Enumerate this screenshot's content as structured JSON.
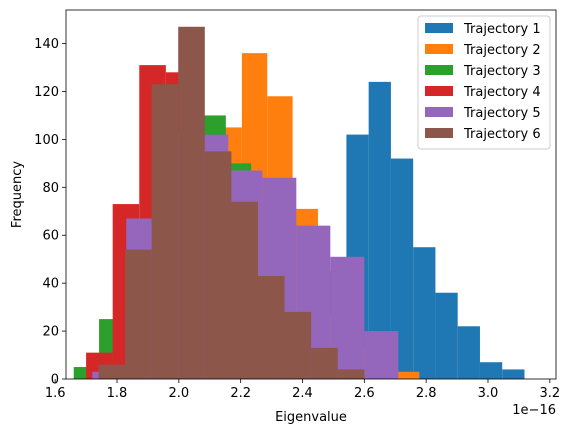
{
  "chart_data": {
    "type": "bar",
    "xlabel": "Eigenvalue",
    "ylabel": "Frequency",
    "x_offset_label": "1e−16",
    "xlim": [
      1.635,
      3.22
    ],
    "ylim": [
      0,
      154
    ],
    "xticks": [
      "1.6",
      "1.8",
      "2.0",
      "2.2",
      "2.4",
      "2.6",
      "2.8",
      "3.0",
      "3.2"
    ],
    "xtick_values": [
      1.6,
      1.8,
      2.0,
      2.2,
      2.4,
      2.6,
      2.8,
      3.0,
      3.2
    ],
    "yticks": [
      "0",
      "20",
      "40",
      "60",
      "80",
      "100",
      "120",
      "140"
    ],
    "ytick_values": [
      0,
      20,
      40,
      60,
      80,
      100,
      120,
      140
    ],
    "legend_position": "top-right",
    "series": [
      {
        "name": "Trajectory 1",
        "color": "#1f77b4",
        "bin_edges": [
          2.47,
          2.542,
          2.614,
          2.686,
          2.758,
          2.83,
          2.902,
          2.974,
          3.046,
          3.118,
          3.19
        ],
        "counts": [
          45,
          102,
          124,
          92,
          55,
          36,
          22,
          7,
          4,
          0
        ]
      },
      {
        "name": "Trajectory 2",
        "color": "#ff7f0e",
        "bin_edges": [
          2.04,
          2.122,
          2.204,
          2.286,
          2.368,
          2.45,
          2.532,
          2.614,
          2.696,
          2.778
        ],
        "counts": [
          54,
          105,
          136,
          118,
          71,
          26,
          13,
          4,
          3
        ]
      },
      {
        "name": "Trajectory 3",
        "color": "#2ca02c",
        "bin_edges": [
          1.66,
          1.742,
          1.824,
          1.906,
          1.988,
          2.07,
          2.152,
          2.234,
          2.316
        ],
        "counts": [
          5,
          25,
          65,
          119,
          103,
          110,
          90,
          45
        ]
      },
      {
        "name": "Trajectory 4",
        "color": "#d62728",
        "bin_edges": [
          1.7,
          1.786,
          1.872,
          1.958,
          2.044,
          2.13,
          2.216,
          2.302,
          2.388
        ],
        "counts": [
          11,
          73,
          131,
          128,
          98,
          77,
          30,
          6
        ]
      },
      {
        "name": "Trajectory 5",
        "color": "#9467bd",
        "bin_edges": [
          1.72,
          1.83,
          1.94,
          2.05,
          2.16,
          2.27,
          2.38,
          2.49,
          2.6,
          2.71
        ],
        "counts": [
          3,
          67,
          103,
          102,
          87,
          84,
          64,
          51,
          20
        ]
      },
      {
        "name": "Trajectory 6",
        "color": "#8c564b",
        "bin_edges": [
          1.74,
          1.826,
          1.912,
          1.998,
          2.084,
          2.17,
          2.256,
          2.342,
          2.428,
          2.514,
          2.6
        ],
        "counts": [
          6,
          54,
          123,
          147,
          95,
          74,
          43,
          28,
          13,
          4
        ]
      }
    ]
  }
}
